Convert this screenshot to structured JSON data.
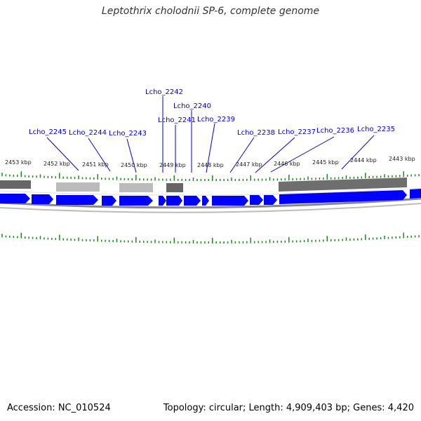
{
  "title": "Leptothrix cholodnii SP-6, complete genome",
  "accession_text": "Accession: NC_010524",
  "summary_text": "Topology: circular; Length: 4,909,403 bp; Genes: 4,420",
  "colors": {
    "gene_arrow": "#0000ff",
    "gene_label": "#0000cc",
    "tick": "#1a8a1a",
    "feature_dark": "#666666",
    "feature_light": "#bbbbbb",
    "backbone": "#888888"
  },
  "kbp_ticks": [
    "2453 kbp",
    "2452 kbp",
    "2451 kbp",
    "2450 kbp",
    "2449 kbp",
    "2448 kbp",
    "2447 kbp",
    "2446 kbp",
    "2445 kbp",
    "2444 kbp",
    "2443 kbp"
  ],
  "gene_labels": [
    "Lcho_2245",
    "Lcho_2244",
    "Lcho_2243",
    "Lcho_2242",
    "Lcho_2241",
    "Lcho_2240",
    "Lcho_2239",
    "Lcho_2238",
    "Lcho_2237",
    "Lcho_2236",
    "Lcho_2235"
  ]
}
